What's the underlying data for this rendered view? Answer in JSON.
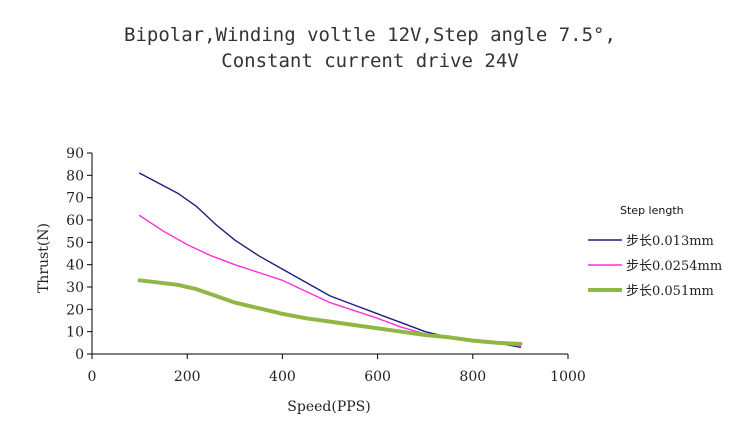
{
  "chart_data": {
    "type": "line",
    "title": [
      "Bipolar,Winding voltle 12V,Step angle 7.5°,",
      "Constant current drive 24V"
    ],
    "xlabel": "Speed(PPS)",
    "ylabel": "Thrust(N)",
    "xlim": [
      0,
      1000
    ],
    "ylim": [
      0,
      90
    ],
    "xticks": [
      0,
      200,
      400,
      600,
      800,
      1000
    ],
    "yticks": [
      0,
      10,
      20,
      30,
      40,
      50,
      60,
      70,
      80,
      90
    ],
    "grid": false,
    "legend": {
      "title": "Step length",
      "position": "right"
    },
    "series": [
      {
        "name": "步长0.013mm",
        "color": "#1a1f7a",
        "stroke_weight": "thin",
        "x": [
          100,
          180,
          220,
          260,
          300,
          350,
          400,
          450,
          500,
          550,
          600,
          650,
          700,
          750,
          800,
          850,
          900
        ],
        "y": [
          81,
          72,
          66,
          58,
          51,
          44,
          38,
          32,
          26,
          22,
          18,
          14,
          10,
          7.5,
          6,
          5,
          3
        ]
      },
      {
        "name": "步长0.0254mm",
        "color": "#ff2fd6",
        "stroke_weight": "thin",
        "x": [
          100,
          150,
          200,
          250,
          300,
          350,
          400,
          450,
          500,
          550,
          600,
          650,
          700,
          750,
          800,
          850,
          900
        ],
        "y": [
          62,
          55,
          49,
          44,
          40,
          36.5,
          33,
          28,
          23,
          19.5,
          16,
          12,
          9,
          7.5,
          6.5,
          5,
          3.5
        ]
      },
      {
        "name": "步长0.051mm",
        "color": "#8fb743",
        "stroke_weight": "thick",
        "x": [
          100,
          180,
          220,
          260,
          300,
          350,
          400,
          450,
          500,
          550,
          600,
          650,
          700,
          750,
          800,
          850,
          900
        ],
        "y": [
          33,
          31,
          29,
          26,
          23,
          20.5,
          18,
          16,
          14.5,
          13,
          11.5,
          10,
          8.5,
          7.5,
          6,
          5,
          4.5
        ]
      }
    ]
  }
}
